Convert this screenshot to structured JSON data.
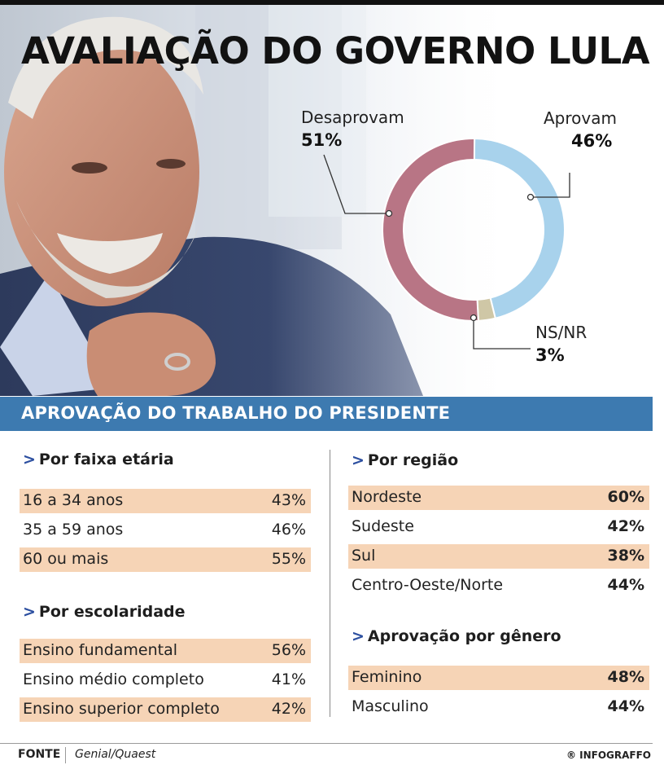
{
  "headline": "AVALIAÇÃO DO GOVERNO LULA",
  "colors": {
    "aprovam": "#a8d2ec",
    "desaprovam": "#b87585",
    "nsnr": "#cfc7a6",
    "section_bar": "#3d7ab0",
    "row_shade": "#f6d4b6",
    "arrow": "#2c4fa0"
  },
  "chart_data": {
    "type": "pie",
    "labels": [
      "Aprovam",
      "NS/NR",
      "Desaprovam"
    ],
    "values": [
      46,
      3,
      51
    ],
    "display": [
      "46%",
      "3%",
      "51%"
    ]
  },
  "section_title": "APROVAÇÃO DO TRABALHO DO PRESIDENTE",
  "arrow_glyph": ">",
  "groups": {
    "faixa_etaria": {
      "title": "Por faixa etária",
      "rows": [
        {
          "label": "16 a 34 anos",
          "value": "43%"
        },
        {
          "label": "35 a 59 anos",
          "value": "46%"
        },
        {
          "label": "60 ou mais",
          "value": "55%"
        }
      ]
    },
    "escolaridade": {
      "title": "Por escolaridade",
      "rows": [
        {
          "label": "Ensino fundamental",
          "value": "56%"
        },
        {
          "label": "Ensino médio completo",
          "value": "41%"
        },
        {
          "label": "Ensino superior completo",
          "value": "42%"
        }
      ]
    },
    "regiao": {
      "title": "Por região",
      "rows": [
        {
          "label": "Nordeste",
          "value": "60%"
        },
        {
          "label": "Sudeste",
          "value": "42%"
        },
        {
          "label": "Sul",
          "value": "38%"
        },
        {
          "label": "Centro-Oeste/Norte",
          "value": "44%"
        }
      ]
    },
    "genero": {
      "title": "Aprovação por gênero",
      "rows": [
        {
          "label": "Feminino",
          "value": "48%"
        },
        {
          "label": "Masculino",
          "value": "44%"
        }
      ]
    }
  },
  "footer": {
    "source_label": "FONTE",
    "source_value": "Genial/Quaest",
    "credit": "® INFOGRAFFO"
  }
}
